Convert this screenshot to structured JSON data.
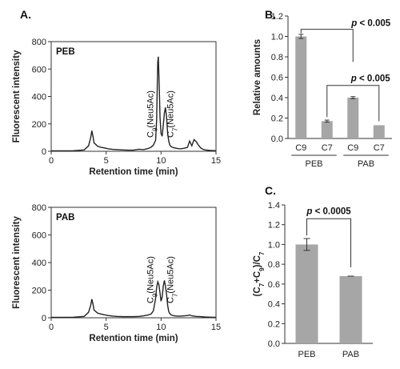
{
  "panels": {
    "a": "A.",
    "b": "B.",
    "c": "C."
  },
  "chart_data": [
    {
      "type": "line",
      "panel": "A",
      "tag": "PEB",
      "xlabel": "Retention time (min)",
      "ylabel": "Fluorescent intensity",
      "xlim": [
        0,
        15
      ],
      "ylim": [
        0,
        800
      ],
      "xticks": [
        0,
        5,
        10,
        15
      ],
      "yticks": [
        0,
        200,
        400,
        600,
        800
      ],
      "annotations": [
        {
          "label": "C9(Neu5Ac)",
          "x": 9.3
        },
        {
          "label": "C7(Neu5Ac)",
          "x": 11.1
        }
      ],
      "x": [
        0,
        1,
        2,
        3,
        3.4,
        3.6,
        3.7,
        3.8,
        3.9,
        4.0,
        4.2,
        4.5,
        4.8,
        5.2,
        5.6,
        6,
        6.5,
        7,
        7.5,
        8,
        8.4,
        8.8,
        9.1,
        9.3,
        9.5,
        9.6,
        9.65,
        9.7,
        9.75,
        9.8,
        9.85,
        9.9,
        10.0,
        10.1,
        10.2,
        10.3,
        10.4,
        10.5,
        10.6,
        10.7,
        10.8,
        10.9,
        11.0,
        11.2,
        11.5,
        11.8,
        12.1,
        12.4,
        12.6,
        12.8,
        13.0,
        13.2,
        13.4,
        13.6,
        13.8,
        14.0,
        14.5,
        15
      ],
      "y": [
        3,
        3,
        4,
        10,
        40,
        100,
        150,
        110,
        60,
        55,
        38,
        30,
        25,
        18,
        14,
        12,
        10,
        8,
        8,
        15,
        12,
        20,
        30,
        45,
        80,
        230,
        450,
        650,
        690,
        560,
        420,
        250,
        130,
        110,
        190,
        280,
        320,
        250,
        130,
        75,
        45,
        35,
        30,
        25,
        20,
        18,
        22,
        28,
        75,
        40,
        85,
        70,
        45,
        25,
        15,
        10,
        6,
        4
      ]
    },
    {
      "type": "line",
      "panel": "A",
      "tag": "PAB",
      "xlabel": "Retention time (min)",
      "ylabel": "Fluorescent intensity",
      "xlim": [
        0,
        15
      ],
      "ylim": [
        0,
        800
      ],
      "xticks": [
        0,
        5,
        10,
        15
      ],
      "yticks": [
        0,
        200,
        400,
        600,
        800
      ],
      "annotations": [
        {
          "label": "C9(Neu5Ac)",
          "x": 9.3
        },
        {
          "label": "C7(Neu5Ac)",
          "x": 11.1
        }
      ],
      "x": [
        0,
        1,
        2,
        3,
        3.4,
        3.6,
        3.7,
        3.8,
        3.9,
        4.0,
        4.2,
        4.5,
        4.8,
        5.2,
        5.6,
        6,
        6.5,
        7,
        7.5,
        8,
        8.4,
        8.8,
        9.1,
        9.3,
        9.5,
        9.6,
        9.7,
        9.8,
        9.9,
        10.0,
        10.1,
        10.2,
        10.3,
        10.4,
        10.5,
        10.6,
        10.7,
        10.8,
        10.9,
        11.0,
        11.2,
        11.5,
        11.8,
        12.1,
        12.4,
        12.6,
        12.8,
        13.0,
        13.2,
        13.4,
        13.6,
        13.8,
        14.0,
        14.5,
        15
      ],
      "y": [
        3,
        3,
        4,
        10,
        40,
        90,
        135,
        100,
        55,
        50,
        35,
        28,
        22,
        16,
        12,
        10,
        8,
        8,
        8,
        10,
        14,
        20,
        28,
        50,
        140,
        220,
        260,
        240,
        180,
        120,
        150,
        230,
        270,
        230,
        170,
        90,
        45,
        30,
        22,
        18,
        14,
        12,
        12,
        14,
        16,
        20,
        14,
        12,
        10,
        9,
        8,
        7,
        6,
        4,
        3
      ]
    },
    {
      "type": "bar",
      "panel": "B",
      "categories": [
        "C9",
        "C7",
        "C9",
        "C7"
      ],
      "groups": [
        {
          "name": "PEB",
          "categories": [
            "C9",
            "C7"
          ]
        },
        {
          "name": "PAB",
          "categories": [
            "C9",
            "C7"
          ]
        }
      ],
      "values": [
        1.0,
        0.17,
        0.4,
        0.13
      ],
      "errors": [
        0.02,
        0.01,
        0.01,
        0.0
      ],
      "ylabel": "Relative amounts",
      "ylim": [
        0,
        1.2
      ],
      "yticks": [
        "0.0",
        "0.2",
        "0.4",
        "0.6",
        "0.8",
        "1.0",
        "1.2"
      ],
      "comparisons": [
        {
          "text": "p < 0.005",
          "between": [
            0,
            2
          ]
        },
        {
          "text": "p < 0.005",
          "between": [
            1,
            3
          ]
        }
      ]
    },
    {
      "type": "bar",
      "panel": "C",
      "categories": [
        "PEB",
        "PAB"
      ],
      "values": [
        1.0,
        0.68
      ],
      "errors": [
        0.06,
        0.0
      ],
      "ylabel": "(C7+C9)/C7",
      "ylim": [
        0,
        1.4
      ],
      "yticks": [
        "0.0",
        "0.2",
        "0.4",
        "0.6",
        "0.8",
        "1.0",
        "1.2",
        "1.4"
      ],
      "comparisons": [
        {
          "text": "p < 0.0005",
          "between": [
            0,
            1
          ]
        }
      ]
    }
  ],
  "colors": {
    "bar": "#a6a6a6",
    "line": "#222222",
    "axis": "#333333"
  }
}
